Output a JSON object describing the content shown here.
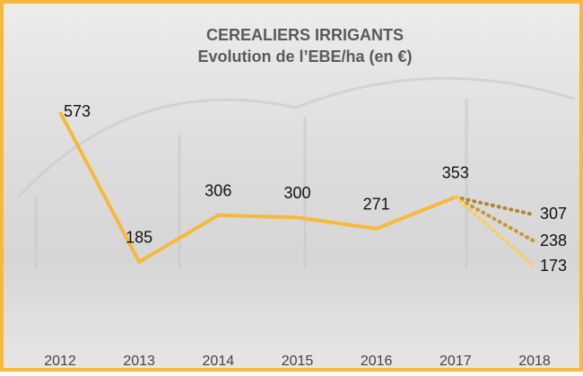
{
  "chart_data": {
    "type": "line",
    "title": "CEREALIERS IRRIGANTS",
    "subtitle": "Evolution de l’EBE/ha (en €)",
    "x": [
      2012,
      2013,
      2014,
      2015,
      2016,
      2017,
      2018
    ],
    "series": [
      {
        "color": "#f6b93b",
        "values": [
          573,
          185,
          306,
          300,
          271,
          353,
          null
        ]
      }
    ],
    "projections": [
      {
        "color": "#b5842a",
        "value": 307
      },
      {
        "color": "#c8962e",
        "value": 238
      },
      {
        "color": "#ffcc4d",
        "value": 173
      }
    ]
  }
}
